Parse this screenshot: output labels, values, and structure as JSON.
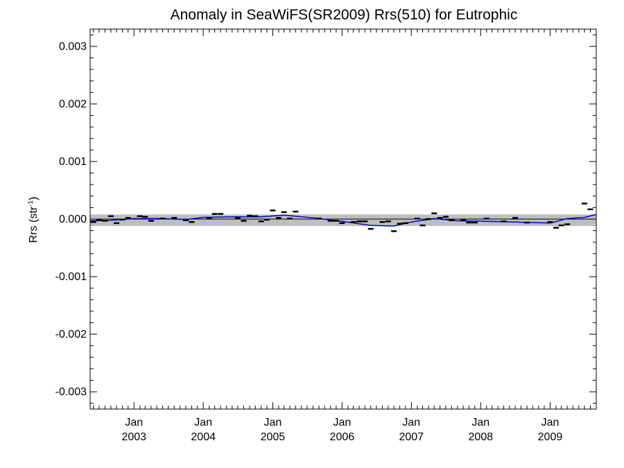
{
  "chart_data": {
    "type": "scatter",
    "title": "Anomaly in SeaWiFS(SR2009) Rrs(510) for Eutrophic",
    "ylabel_main": "Rrs (str",
    "ylabel_sup": "-1",
    "ylabel_close": ")",
    "xlabel": "",
    "ylim": [
      -0.0033,
      0.0033
    ],
    "xlim": [
      "2002-05-15",
      "2009-09-01"
    ],
    "ytick_values": [
      0.003,
      0.002,
      0.001,
      0.0,
      -0.001,
      -0.002,
      -0.003
    ],
    "ytick_labels": [
      "0.003",
      "0.002",
      "0.001",
      "0.000",
      "-0.001",
      "-0.002",
      "-0.003"
    ],
    "xticks": [
      {
        "date": "2003-01-01",
        "month": "Jan",
        "year": "2003"
      },
      {
        "date": "2004-01-01",
        "month": "Jan",
        "year": "2004"
      },
      {
        "date": "2005-01-01",
        "month": "Jan",
        "year": "2005"
      },
      {
        "date": "2006-01-01",
        "month": "Jan",
        "year": "2006"
      },
      {
        "date": "2007-01-01",
        "month": "Jan",
        "year": "2007"
      },
      {
        "date": "2008-01-01",
        "month": "Jan",
        "year": "2008"
      },
      {
        "date": "2009-01-01",
        "month": "Jan",
        "year": "2009"
      }
    ],
    "band": {
      "lower": -0.00012,
      "upper": 8e-05,
      "color": "#bebebe"
    },
    "zero_line_color": "#000000",
    "marker_color": "#000000",
    "smooth_color": "#0000cc",
    "series": [
      {
        "kind": "monthly_anomaly",
        "points": [
          {
            "x": "2002-06-01",
            "y": -5e-05
          },
          {
            "x": "2002-07-01",
            "y": -2e-05
          },
          {
            "x": "2002-08-01",
            "y": -3e-05
          },
          {
            "x": "2002-09-01",
            "y": 5e-05
          },
          {
            "x": "2002-10-01",
            "y": -7e-05
          },
          {
            "x": "2002-11-01",
            "y": -1e-05
          },
          {
            "x": "2002-12-01",
            "y": 2e-05
          },
          {
            "x": "2003-02-01",
            "y": 5e-05
          },
          {
            "x": "2003-03-01",
            "y": 4e-05
          },
          {
            "x": "2003-04-01",
            "y": -3e-05
          },
          {
            "x": "2003-06-01",
            "y": 1e-05
          },
          {
            "x": "2003-08-01",
            "y": 2e-05
          },
          {
            "x": "2003-10-01",
            "y": -2e-05
          },
          {
            "x": "2003-11-01",
            "y": -5e-05
          },
          {
            "x": "2004-02-01",
            "y": 1e-05
          },
          {
            "x": "2004-03-01",
            "y": 9e-05
          },
          {
            "x": "2004-04-01",
            "y": 9e-05
          },
          {
            "x": "2004-07-01",
            "y": 2e-05
          },
          {
            "x": "2004-08-01",
            "y": -3e-05
          },
          {
            "x": "2004-09-01",
            "y": 6e-05
          },
          {
            "x": "2004-10-01",
            "y": 5e-05
          },
          {
            "x": "2004-11-01",
            "y": -4e-05
          },
          {
            "x": "2004-12-01",
            "y": -1e-05
          },
          {
            "x": "2005-01-01",
            "y": 0.00015
          },
          {
            "x": "2005-02-01",
            "y": 2e-05
          },
          {
            "x": "2005-03-01",
            "y": 0.00012
          },
          {
            "x": "2005-04-01",
            "y": 1e-05
          },
          {
            "x": "2005-05-01",
            "y": 0.00013
          },
          {
            "x": "2005-09-01",
            "y": 1e-05
          },
          {
            "x": "2005-11-01",
            "y": -3e-05
          },
          {
            "x": "2005-12-01",
            "y": -3e-05
          },
          {
            "x": "2006-01-01",
            "y": -7e-05
          },
          {
            "x": "2006-03-01",
            "y": -5e-05
          },
          {
            "x": "2006-04-01",
            "y": -4e-05
          },
          {
            "x": "2006-05-01",
            "y": -4e-05
          },
          {
            "x": "2006-06-01",
            "y": -0.00017
          },
          {
            "x": "2006-08-01",
            "y": -5e-05
          },
          {
            "x": "2006-09-01",
            "y": -4e-05
          },
          {
            "x": "2006-10-01",
            "y": -0.00021
          },
          {
            "x": "2006-11-01",
            "y": -8e-05
          },
          {
            "x": "2006-12-01",
            "y": -7e-05
          },
          {
            "x": "2007-02-01",
            "y": 1e-05
          },
          {
            "x": "2007-03-01",
            "y": -0.00011
          },
          {
            "x": "2007-04-01",
            "y": 0.0
          },
          {
            "x": "2007-05-01",
            "y": 0.0001
          },
          {
            "x": "2007-06-01",
            "y": 2e-05
          },
          {
            "x": "2007-07-01",
            "y": 4e-05
          },
          {
            "x": "2007-08-01",
            "y": -2e-05
          },
          {
            "x": "2007-10-01",
            "y": -2e-05
          },
          {
            "x": "2007-11-01",
            "y": -6e-05
          },
          {
            "x": "2007-12-01",
            "y": -6e-05
          },
          {
            "x": "2008-02-01",
            "y": 1e-05
          },
          {
            "x": "2008-05-01",
            "y": -4e-05
          },
          {
            "x": "2008-07-01",
            "y": 2e-05
          },
          {
            "x": "2008-09-01",
            "y": -6e-05
          },
          {
            "x": "2009-01-01",
            "y": -5e-05
          },
          {
            "x": "2009-02-01",
            "y": -0.00015
          },
          {
            "x": "2009-03-01",
            "y": -0.00011
          },
          {
            "x": "2009-04-01",
            "y": -9e-05
          },
          {
            "x": "2009-07-01",
            "y": 0.00027
          },
          {
            "x": "2009-08-01",
            "y": 0.00017
          }
        ]
      },
      {
        "kind": "smoothed",
        "points": [
          {
            "x": "2002-05-15",
            "y": -3e-05
          },
          {
            "x": "2002-09-01",
            "y": -2e-05
          },
          {
            "x": "2003-01-01",
            "y": 1e-05
          },
          {
            "x": "2003-06-01",
            "y": 1e-05
          },
          {
            "x": "2003-10-01",
            "y": -1e-05
          },
          {
            "x": "2004-01-01",
            "y": 3e-05
          },
          {
            "x": "2004-06-01",
            "y": 4e-05
          },
          {
            "x": "2004-11-01",
            "y": 4e-05
          },
          {
            "x": "2005-03-01",
            "y": 7e-05
          },
          {
            "x": "2005-08-01",
            "y": 2e-05
          },
          {
            "x": "2006-01-01",
            "y": -4e-05
          },
          {
            "x": "2006-06-01",
            "y": -0.00011
          },
          {
            "x": "2006-10-01",
            "y": -0.00012
          },
          {
            "x": "2007-01-01",
            "y": -5e-05
          },
          {
            "x": "2007-05-01",
            "y": 1e-05
          },
          {
            "x": "2007-09-01",
            "y": -3e-05
          },
          {
            "x": "2008-02-01",
            "y": -4e-05
          },
          {
            "x": "2008-07-01",
            "y": -5e-05
          },
          {
            "x": "2009-01-01",
            "y": -7e-05
          },
          {
            "x": "2009-04-01",
            "y": 1e-05
          },
          {
            "x": "2009-07-01",
            "y": 3e-05
          },
          {
            "x": "2009-09-01",
            "y": 8e-05
          }
        ]
      }
    ],
    "grid": false,
    "legend": "none"
  }
}
